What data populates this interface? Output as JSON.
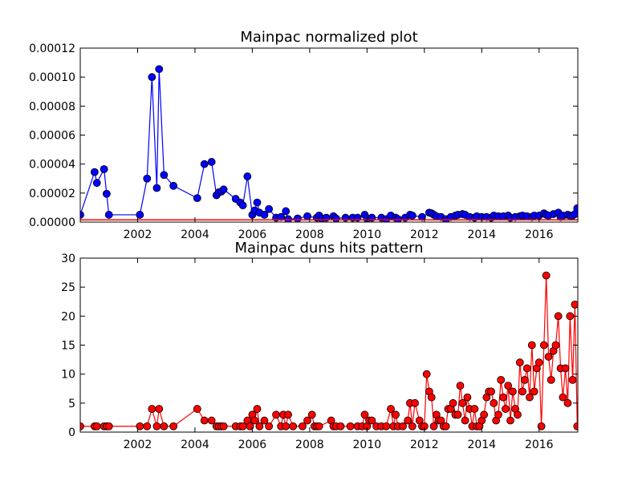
{
  "chart_data": [
    {
      "type": "line",
      "title": "Mainpac normalized plot",
      "xlabel": "",
      "ylabel": "",
      "xlim": [
        2000.0,
        2017.35
      ],
      "ylim": [
        0,
        0.00012
      ],
      "x_ticks": [
        2002,
        2004,
        2006,
        2008,
        2010,
        2012,
        2014,
        2016
      ],
      "x_tick_labels": [
        "2002",
        "2004",
        "2006",
        "2008",
        "2010",
        "2012",
        "2014",
        "2016"
      ],
      "y_ticks": [
        0,
        2e-05,
        4e-05,
        6e-05,
        8e-05,
        0.0001,
        0.00012
      ],
      "y_tick_labels": [
        "0.00000",
        "0.00002",
        "0.00004",
        "0.00006",
        "0.00008",
        "0.00010",
        "0.00012"
      ],
      "grid": false,
      "colors": {
        "marker": "#0000ff",
        "line": "#0000ff",
        "baseline": "#ff0000"
      },
      "series": [
        {
          "x": [
            2000.0,
            2000.5,
            2000.58,
            2000.83,
            2000.92,
            2001.0,
            2002.08,
            2002.33,
            2002.5,
            2002.67,
            2002.75,
            2002.92,
            2003.25,
            2004.08,
            2004.33,
            2004.58,
            2004.75,
            2004.83,
            2004.92,
            2005.0,
            2005.42,
            2005.58,
            2005.67,
            2005.83,
            2006.0,
            2006.08,
            2006.17,
            2006.25,
            2006.42,
            2006.58,
            2006.83,
            2007.0,
            2007.17,
            2007.25,
            2007.58,
            2007.92,
            2008.25,
            2008.33,
            2008.42,
            2008.58,
            2008.83,
            2008.92,
            2009.25,
            2009.5,
            2009.67,
            2009.92,
            2010.0,
            2010.17,
            2010.5,
            2010.67,
            2010.83,
            2011.0,
            2011.08,
            2011.33,
            2011.5,
            2011.58,
            2011.92,
            2012.17,
            2012.25,
            2012.33,
            2012.42,
            2012.58,
            2012.75,
            2012.92,
            2013.08,
            2013.17,
            2013.33,
            2013.42,
            2013.58,
            2013.75,
            2013.83,
            2014.0,
            2014.17,
            2014.33,
            2014.42,
            2014.58,
            2014.75,
            2014.92,
            2015.0,
            2015.17,
            2015.33,
            2015.42,
            2015.58,
            2015.75,
            2015.83,
            2016.0,
            2016.17,
            2016.25,
            2016.33,
            2016.5,
            2016.67,
            2016.75,
            2016.83,
            2017.0,
            2017.08,
            2017.17,
            2017.25,
            2017.33
          ],
          "values": [
            5e-06,
            3.45e-05,
            2.7e-05,
            3.65e-05,
            1.95e-05,
            5e-06,
            5e-06,
            3e-05,
            0.0001,
            2.35e-05,
            0.0001055,
            3.25e-05,
            2.5e-05,
            1.65e-05,
            4e-05,
            4.15e-05,
            1.85e-05,
            2.05e-05,
            2.1e-05,
            2.25e-05,
            1.6e-05,
            1.35e-05,
            1.15e-05,
            3.15e-05,
            5e-06,
            8e-06,
            1.35e-05,
            6.5e-06,
            5e-06,
            9e-06,
            3e-06,
            3.5e-06,
            7.5e-06,
            2e-06,
            2.5e-06,
            4e-06,
            3e-06,
            4.5e-06,
            2.5e-06,
            3e-06,
            4e-06,
            2.5e-06,
            3e-06,
            3e-06,
            3e-06,
            5e-06,
            2.5e-06,
            3e-06,
            3e-06,
            2e-06,
            4.5e-06,
            3e-06,
            2e-06,
            3e-06,
            5e-06,
            4.5e-06,
            3.5e-06,
            6.5e-06,
            6e-06,
            5e-06,
            4e-06,
            3.5e-06,
            2e-06,
            3.5e-06,
            4.5e-06,
            5e-06,
            5.5e-06,
            5e-06,
            3.5e-06,
            3e-06,
            4e-06,
            3.5e-06,
            3.5e-06,
            3e-06,
            4.5e-06,
            4e-06,
            4e-06,
            4.5e-06,
            3e-06,
            3.5e-06,
            4e-06,
            4.5e-06,
            4e-06,
            3.5e-06,
            4.5e-06,
            4.5e-06,
            6e-06,
            5e-06,
            4.5e-06,
            5.5e-06,
            6.5e-06,
            3.5e-06,
            4.5e-06,
            5e-06,
            4.5e-06,
            4.5e-06,
            5.5e-06,
            9.5e-06
          ]
        },
        {
          "x": [
            2000.0,
            2017.35
          ],
          "values": [
            1.5e-06,
            1.5e-06
          ]
        }
      ]
    },
    {
      "type": "line",
      "title": "Mainpac duns hits pattern",
      "xlabel": "",
      "ylabel": "",
      "xlim": [
        2000.0,
        2017.35
      ],
      "ylim": [
        0,
        30
      ],
      "x_ticks": [
        2002,
        2004,
        2006,
        2008,
        2010,
        2012,
        2014,
        2016
      ],
      "x_tick_labels": [
        "2002",
        "2004",
        "2006",
        "2008",
        "2010",
        "2012",
        "2014",
        "2016"
      ],
      "y_ticks": [
        0,
        5,
        10,
        15,
        20,
        25,
        30
      ],
      "y_tick_labels": [
        "0",
        "5",
        "10",
        "15",
        "20",
        "25",
        "30"
      ],
      "grid": false,
      "colors": {
        "marker": "#ff0000",
        "line": "#ff0000"
      },
      "series": [
        {
          "x": [
            2000.0,
            2000.5,
            2000.58,
            2000.83,
            2000.92,
            2001.0,
            2002.08,
            2002.33,
            2002.5,
            2002.67,
            2002.75,
            2002.92,
            2003.25,
            2004.08,
            2004.33,
            2004.58,
            2004.75,
            2004.83,
            2004.92,
            2005.0,
            2005.42,
            2005.58,
            2005.67,
            2005.83,
            2005.92,
            2006.0,
            2006.08,
            2006.17,
            2006.25,
            2006.42,
            2006.58,
            2006.83,
            2007.0,
            2007.08,
            2007.17,
            2007.25,
            2007.42,
            2007.75,
            2007.92,
            2008.08,
            2008.17,
            2008.25,
            2008.33,
            2008.75,
            2008.83,
            2008.92,
            2009.08,
            2009.42,
            2009.67,
            2009.83,
            2009.92,
            2010.0,
            2010.08,
            2010.17,
            2010.33,
            2010.5,
            2010.67,
            2010.83,
            2010.92,
            2011.0,
            2011.08,
            2011.25,
            2011.42,
            2011.5,
            2011.58,
            2011.67,
            2011.83,
            2011.92,
            2012.0,
            2012.08,
            2012.17,
            2012.25,
            2012.33,
            2012.42,
            2012.5,
            2012.58,
            2012.67,
            2012.75,
            2012.83,
            2012.92,
            2013.0,
            2013.08,
            2013.17,
            2013.25,
            2013.33,
            2013.42,
            2013.5,
            2013.58,
            2013.67,
            2013.75,
            2013.83,
            2013.92,
            2014.0,
            2014.08,
            2014.17,
            2014.25,
            2014.33,
            2014.42,
            2014.5,
            2014.58,
            2014.67,
            2014.75,
            2014.83,
            2014.92,
            2015.0,
            2015.08,
            2015.17,
            2015.25,
            2015.33,
            2015.42,
            2015.5,
            2015.58,
            2015.67,
            2015.75,
            2015.83,
            2015.92,
            2016.0,
            2016.08,
            2016.17,
            2016.25,
            2016.33,
            2016.42,
            2016.5,
            2016.58,
            2016.67,
            2016.75,
            2016.83,
            2016.92,
            2017.0,
            2017.08,
            2017.17,
            2017.25,
            2017.33
          ],
          "values": [
            1,
            1,
            1,
            1,
            1,
            1,
            1,
            1,
            4,
            1,
            4,
            1,
            1,
            4,
            2,
            2,
            1,
            1,
            1,
            1,
            1,
            1,
            1,
            2,
            1,
            3,
            2,
            4,
            1,
            2,
            1,
            3,
            1,
            3,
            1,
            3,
            1,
            1,
            2,
            3,
            1,
            1,
            1,
            2,
            1,
            1,
            1,
            1,
            1,
            1,
            3,
            1,
            2,
            2,
            1,
            1,
            1,
            4,
            1,
            3,
            1,
            1,
            2,
            5,
            1,
            5,
            2,
            1,
            1,
            10,
            7,
            6,
            1,
            3,
            2,
            2,
            1,
            1,
            4,
            4,
            5,
            3,
            3,
            8,
            5,
            2,
            6,
            4,
            1,
            4,
            1,
            1,
            2,
            3,
            6,
            7,
            7,
            5,
            2,
            3,
            9,
            6,
            4,
            8,
            2,
            7,
            4,
            3,
            12,
            7,
            9,
            11,
            6,
            15,
            7,
            11,
            12,
            1,
            15,
            27,
            13,
            9,
            14,
            15,
            20,
            11,
            6,
            11,
            5,
            20,
            9,
            22,
            1
          ]
        }
      ]
    }
  ]
}
